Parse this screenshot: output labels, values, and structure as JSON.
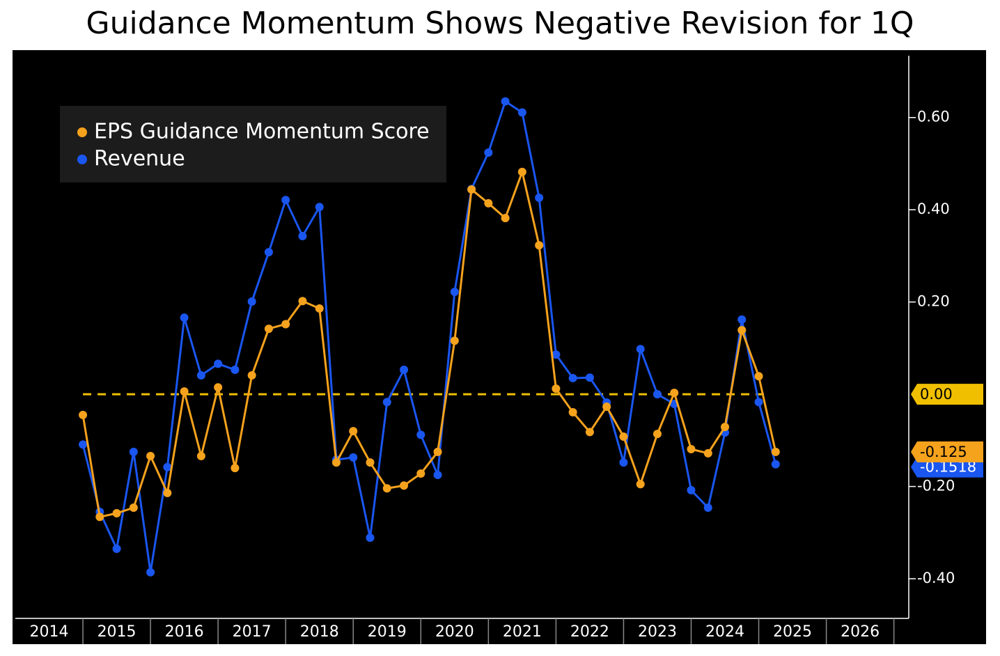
{
  "chart_data": {
    "type": "line",
    "title": "Guidance Momentum Shows Negative Revision for 1Q",
    "x": [
      2015,
      2015.25,
      2015.5,
      2015.75,
      2016,
      2016.25,
      2016.5,
      2016.75,
      2017,
      2017.25,
      2017.5,
      2017.75,
      2018,
      2018.25,
      2018.5,
      2018.75,
      2019,
      2019.25,
      2019.5,
      2019.75,
      2020,
      2020.25,
      2020.5,
      2020.75,
      2021,
      2021.25,
      2021.5,
      2021.75,
      2022,
      2022.25,
      2022.5,
      2022.75,
      2023,
      2023.25,
      2023.5,
      2023.75,
      2024,
      2024.25,
      2024.5,
      2024.75,
      2025,
      2025.25
    ],
    "series": [
      {
        "name": "EPS Guidance Momentum Score",
        "color": "#f5a21d",
        "last_label": "-0.125",
        "values": [
          -0.045,
          -0.266,
          -0.258,
          -0.246,
          -0.134,
          -0.214,
          0.006,
          -0.134,
          0.015,
          -0.16,
          0.041,
          0.142,
          0.152,
          0.202,
          0.186,
          -0.148,
          -0.08,
          -0.148,
          -0.204,
          -0.198,
          -0.172,
          -0.125,
          0.116,
          0.444,
          0.414,
          0.382,
          0.482,
          0.323,
          0.012,
          -0.039,
          -0.082,
          -0.027,
          -0.092,
          -0.195,
          -0.086,
          0.003,
          -0.119,
          -0.128,
          -0.071,
          0.139,
          0.039,
          -0.125
        ]
      },
      {
        "name": "Revenue",
        "color": "#1a56f0",
        "last_label": "-0.1518",
        "values": [
          -0.109,
          -0.255,
          -0.335,
          -0.125,
          -0.386,
          -0.158,
          0.166,
          0.041,
          0.066,
          0.053,
          0.201,
          0.308,
          0.421,
          0.343,
          0.406,
          -0.142,
          -0.137,
          -0.311,
          -0.017,
          0.053,
          -0.088,
          -0.175,
          0.222,
          0.445,
          0.524,
          0.635,
          0.611,
          0.426,
          0.086,
          0.035,
          0.036,
          -0.018,
          -0.148,
          0.098,
          0.0,
          -0.021,
          -0.208,
          -0.246,
          -0.083,
          0.162,
          -0.017,
          -0.1518
        ]
      }
    ],
    "reference_line": {
      "value": 0,
      "label": "0.00",
      "color": "#f0c000"
    },
    "xlim": [
      2014,
      2027.22
    ],
    "xticks": [
      2014,
      2015,
      2016,
      2017,
      2018,
      2019,
      2020,
      2021,
      2022,
      2023,
      2024,
      2025,
      2026
    ],
    "ylim": [
      -0.486,
      0.734
    ],
    "yticks": [
      {
        "value": -0.4,
        "label": "-0.40"
      },
      {
        "value": -0.2,
        "label": "-0.20"
      },
      {
        "value": 0.2,
        "label": "0.20"
      },
      {
        "value": 0.4,
        "label": "0.40"
      },
      {
        "value": 0.6,
        "label": "0.60"
      }
    ],
    "legend": "upper left"
  }
}
